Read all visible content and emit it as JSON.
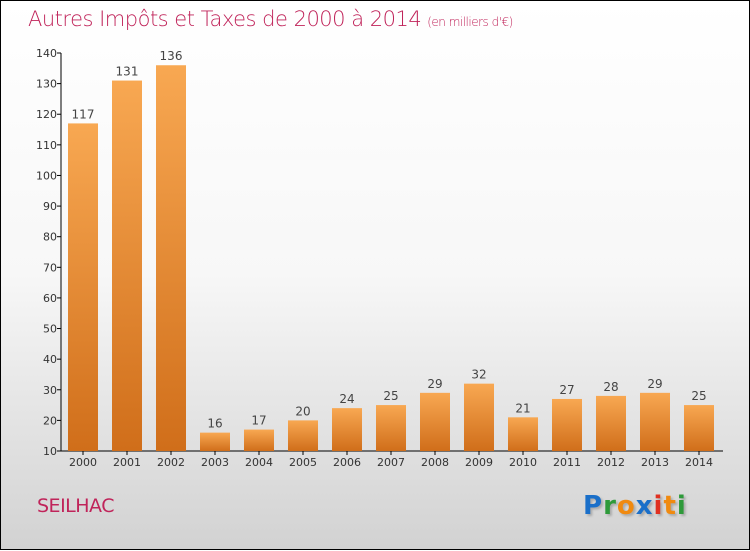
{
  "chart_data": {
    "type": "bar",
    "title": "Autres Impôts et Taxes de 2000 à 2014",
    "unit": "(en milliers d'€)",
    "categories": [
      "2000",
      "2001",
      "2002",
      "2003",
      "2004",
      "2005",
      "2006",
      "2007",
      "2008",
      "2009",
      "2010",
      "2011",
      "2012",
      "2013",
      "2014"
    ],
    "values": [
      117,
      131,
      136,
      16,
      17,
      20,
      24,
      25,
      29,
      32,
      21,
      27,
      28,
      29,
      25
    ],
    "ylim": [
      10,
      140
    ],
    "yticks": [
      10,
      20,
      30,
      40,
      50,
      60,
      70,
      80,
      90,
      100,
      110,
      120,
      130,
      140
    ],
    "xlabel": "",
    "ylabel": "",
    "bar_color_top": "#f8a852",
    "bar_color_bottom": "#d06e1a"
  },
  "footer": {
    "city": "SEILHAC",
    "logo": "Proxiti"
  }
}
